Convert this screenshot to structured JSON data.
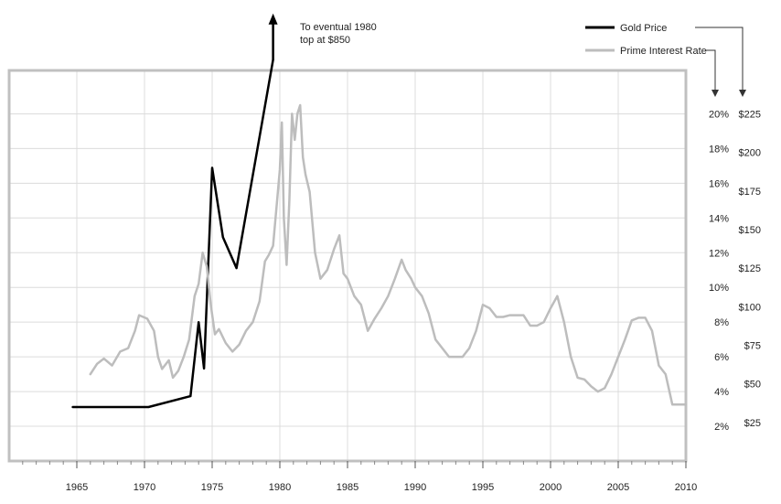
{
  "chart_data": {
    "type": "line",
    "xlim": [
      1960,
      2010
    ],
    "x_ticks": [
      "1965",
      "1970",
      "1975",
      "1980",
      "1985",
      "1990",
      "1995",
      "2000",
      "2005",
      "2010"
    ],
    "rate_axis": {
      "ylim": [
        0,
        22.5
      ],
      "ticks": [
        "2%",
        "4%",
        "6%",
        "8%",
        "10%",
        "12%",
        "14%",
        "16%",
        "18%",
        "20%"
      ]
    },
    "price_axis": {
      "ylim": [
        0,
        253.125
      ],
      "ticks": [
        "$25",
        "$50",
        "$75",
        "$100",
        "$125",
        "$150",
        "$175",
        "$200",
        "$225"
      ]
    },
    "grid": true,
    "legend": {
      "gold": "Gold Price",
      "rate": "Prime Interest Rate"
    },
    "annotation": {
      "line1": "To eventual 1980",
      "line2": "top at $850"
    },
    "colors": {
      "gold": "#000000",
      "rate": "#bdbdbd",
      "grid": "#dcdcdc",
      "frame": "#c0c0c0"
    },
    "series": [
      {
        "name": "Gold Price",
        "axis": "price",
        "x": [
          1964.7,
          1970.3,
          1973.4,
          1974.0,
          1974.4,
          1975.0,
          1975.8,
          1976.8,
          1979.5
        ],
        "y": [
          35,
          35,
          42,
          90,
          60,
          190,
          145,
          125,
          260
        ],
        "arrow_to": 290
      },
      {
        "name": "Prime Interest Rate",
        "axis": "rate",
        "x": [
          1966.0,
          1966.5,
          1967.0,
          1967.6,
          1968.2,
          1968.8,
          1969.3,
          1969.6,
          1970.2,
          1970.7,
          1971.0,
          1971.3,
          1971.8,
          1972.1,
          1972.5,
          1972.9,
          1973.3,
          1973.7,
          1974.0,
          1974.3,
          1974.6,
          1974.9,
          1975.2,
          1975.5,
          1976.0,
          1976.5,
          1977.0,
          1977.5,
          1978.0,
          1978.5,
          1978.9,
          1979.2,
          1979.5,
          1979.8,
          1980.0,
          1980.15,
          1980.3,
          1980.5,
          1980.7,
          1980.9,
          1981.1,
          1981.3,
          1981.5,
          1981.7,
          1981.9,
          1982.2,
          1982.6,
          1983.0,
          1983.5,
          1984.0,
          1984.4,
          1984.7,
          1985.0,
          1985.5,
          1986.0,
          1986.5,
          1987.0,
          1987.5,
          1988.0,
          1988.5,
          1989.0,
          1989.3,
          1989.7,
          1990.0,
          1990.5,
          1991.0,
          1991.5,
          1992.0,
          1992.5,
          1993.0,
          1993.5,
          1994.0,
          1994.5,
          1995.0,
          1995.5,
          1996.0,
          1996.5,
          1997.0,
          1998.0,
          1998.5,
          1999.0,
          1999.5,
          2000.0,
          2000.5,
          2001.0,
          2001.5,
          2002.0,
          2002.5,
          2003.0,
          2003.5,
          2004.0,
          2004.5,
          2005.0,
          2005.5,
          2006.0,
          2006.5,
          2007.0,
          2007.5,
          2008.0,
          2008.5,
          2009.0,
          2010.0
        ],
        "y": [
          5.0,
          5.6,
          5.9,
          5.5,
          6.3,
          6.5,
          7.5,
          8.4,
          8.2,
          7.5,
          6.0,
          5.3,
          5.8,
          4.8,
          5.2,
          6.0,
          7.0,
          9.5,
          10.2,
          12.0,
          11.2,
          9.0,
          7.3,
          7.6,
          6.8,
          6.3,
          6.7,
          7.5,
          8.0,
          9.2,
          11.5,
          11.9,
          12.4,
          15.0,
          16.8,
          19.5,
          14.0,
          11.3,
          15.0,
          20.0,
          18.5,
          20.0,
          20.5,
          17.5,
          16.5,
          15.5,
          12.0,
          10.5,
          11.0,
          12.2,
          13.0,
          10.8,
          10.5,
          9.5,
          9.0,
          7.5,
          8.2,
          8.8,
          9.5,
          10.5,
          11.6,
          11.0,
          10.5,
          10.0,
          9.5,
          8.5,
          7.0,
          6.5,
          6.0,
          6.0,
          6.0,
          6.5,
          7.5,
          9.0,
          8.8,
          8.3,
          8.3,
          8.4,
          8.4,
          7.8,
          7.8,
          8.0,
          8.8,
          9.5,
          8.0,
          6.0,
          4.8,
          4.7,
          4.3,
          4.0,
          4.2,
          5.0,
          6.0,
          7.0,
          8.1,
          8.25,
          8.25,
          7.5,
          5.5,
          5.0,
          3.25,
          3.25
        ]
      }
    ]
  }
}
